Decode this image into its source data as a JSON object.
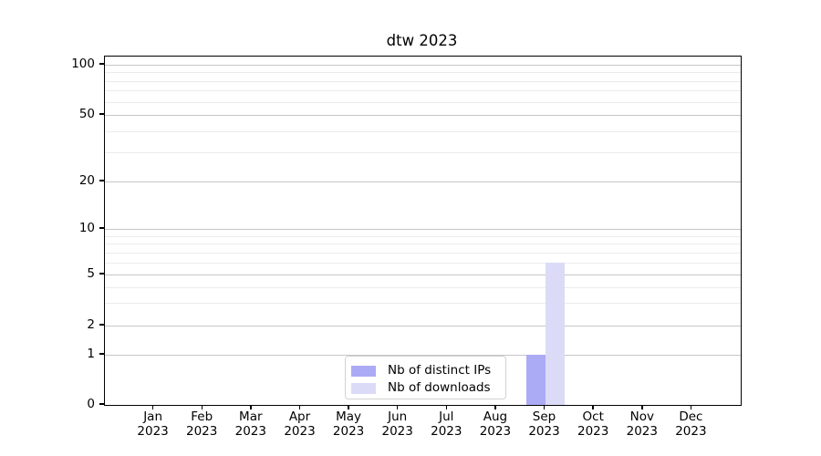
{
  "chart_data": {
    "type": "bar",
    "title": "dtw 2023",
    "categories": [
      "Jan",
      "Feb",
      "Mar",
      "Apr",
      "May",
      "Jun",
      "Jul",
      "Aug",
      "Sep",
      "Oct",
      "Nov",
      "Dec"
    ],
    "category_sublabel": "2023",
    "series": [
      {
        "name": "Nb of distinct IPs",
        "color": "#ababf5",
        "values": [
          0,
          0,
          0,
          0,
          0,
          0,
          0,
          0,
          1,
          0,
          0,
          0
        ]
      },
      {
        "name": "Nb of downloads",
        "color": "#dbdbf8",
        "values": [
          0,
          0,
          0,
          0,
          0,
          0,
          0,
          0,
          6,
          0,
          0,
          0
        ]
      }
    ],
    "yaxis": {
      "scale": "symlog",
      "ylim": [
        0,
        100
      ],
      "major_ticks": [
        0,
        1,
        2,
        5,
        10,
        20,
        50,
        100
      ],
      "minor_ticks": [
        3,
        4,
        6,
        7,
        8,
        9,
        30,
        40,
        60,
        70,
        80,
        90
      ]
    },
    "legend": {
      "position": "lower center"
    },
    "grid": true,
    "colors": {
      "major_grid": "#c6c6c6",
      "minor_grid": "#ebebeb",
      "spine": "#000000",
      "text": "#000000"
    }
  }
}
